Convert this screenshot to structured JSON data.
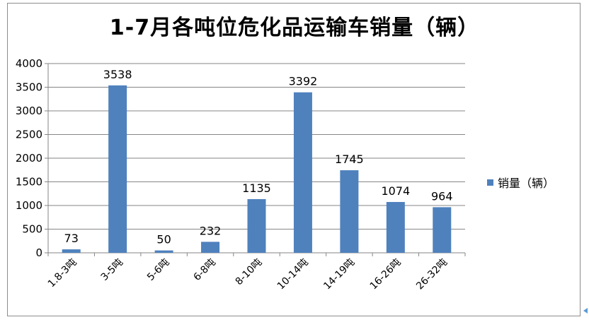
{
  "chart_data": {
    "type": "bar",
    "title": "1-7月各吨位危化品运输车销量（辆）",
    "categories": [
      "1.8-3吨",
      "3-5吨",
      "5-6吨",
      "6-8吨",
      "8-10吨",
      "10-14吨",
      "14-19吨",
      "16-26吨",
      "26-32吨"
    ],
    "series": [
      {
        "name": "销量（辆）",
        "values": [
          73,
          3538,
          50,
          232,
          1135,
          3392,
          1745,
          1074,
          964
        ]
      }
    ],
    "data_labels": [
      "73",
      "3538",
      "50",
      "232",
      "1135",
      "3392",
      "1745",
      "1074",
      "964"
    ],
    "yticks": [
      "0",
      "500",
      "1000",
      "1500",
      "2000",
      "2500",
      "3000",
      "3500",
      "4000"
    ],
    "ylim": [
      0,
      4000
    ],
    "grid": true,
    "legend_position": "right",
    "bar_color": "#4f81bd"
  }
}
